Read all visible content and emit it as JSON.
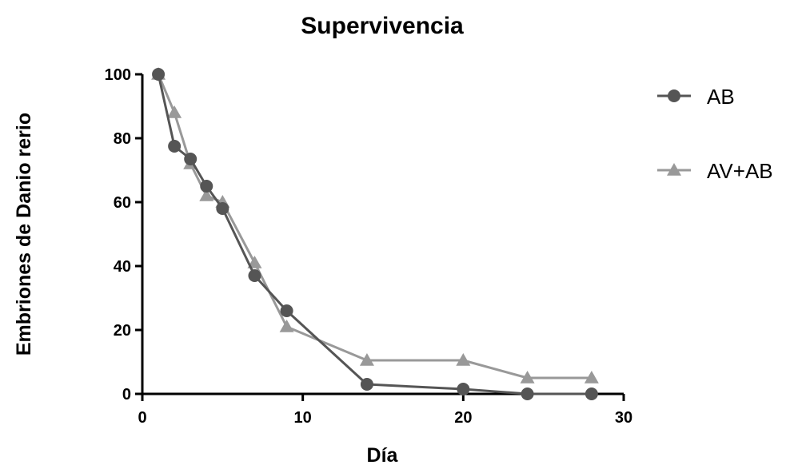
{
  "chart_data": {
    "type": "line",
    "title": "Supervivencia",
    "xlabel": "Día",
    "ylabel": "Embriones de Danio rerio",
    "xlim": [
      0,
      30
    ],
    "ylim": [
      0,
      100
    ],
    "xticks": [
      0,
      10,
      20,
      30
    ],
    "yticks": [
      0,
      20,
      40,
      60,
      80,
      100
    ],
    "grid": false,
    "legend": "right",
    "series": [
      {
        "name": "AB",
        "marker": "circle",
        "color": "#555555",
        "x": [
          1,
          2,
          3,
          4,
          5,
          7,
          9,
          14,
          20,
          24,
          28
        ],
        "y": [
          100,
          77.5,
          73.5,
          65,
          58,
          37,
          26,
          3,
          1.5,
          0,
          0
        ]
      },
      {
        "name": "AV+AB",
        "marker": "triangle",
        "color": "#999999",
        "x": [
          1,
          2,
          3,
          4,
          5,
          7,
          9,
          14,
          20,
          24,
          28
        ],
        "y": [
          100,
          88,
          72,
          62,
          60,
          41,
          21,
          10.5,
          10.5,
          5,
          5
        ]
      }
    ]
  }
}
